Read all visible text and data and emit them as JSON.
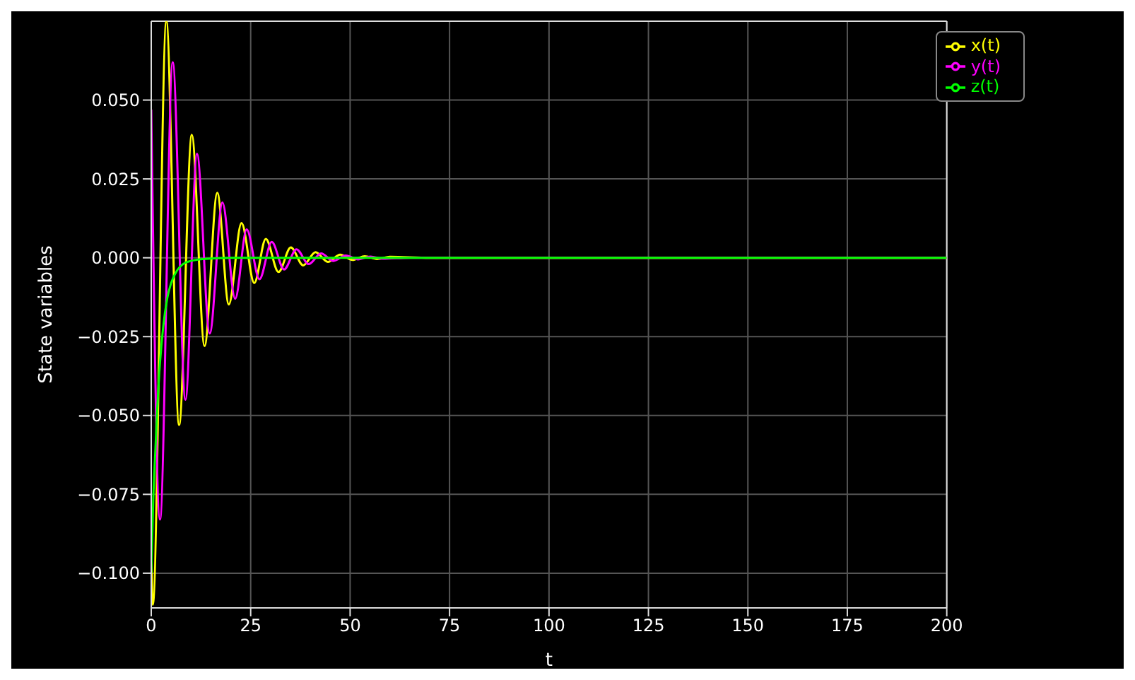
{
  "chart_data": {
    "type": "line",
    "xlabel": "t",
    "ylabel": "State variables",
    "xlim": [
      0,
      200
    ],
    "ylim": [
      -0.111,
      0.075
    ],
    "xticks": [
      0,
      25,
      50,
      75,
      100,
      125,
      150,
      175,
      200
    ],
    "yticks": [
      {
        "value": -0.1,
        "label": "−0.100"
      },
      {
        "value": -0.075,
        "label": "−0.075"
      },
      {
        "value": -0.05,
        "label": "−0.050"
      },
      {
        "value": -0.025,
        "label": "−0.025"
      },
      {
        "value": 0,
        "label": "0.000"
      },
      {
        "value": 0.025,
        "label": "0.025"
      },
      {
        "value": 0.05,
        "label": "0.050"
      }
    ],
    "grid": true,
    "legend": "top right",
    "marker": "none",
    "line_style": "solid",
    "series": [
      {
        "name": "x(t)",
        "color": "#ffff00",
        "x": [
          0,
          0.4,
          3.8,
          7.0,
          10.2,
          13.4,
          16.6,
          19.5,
          22.7,
          25.9,
          28.8,
          32,
          35.1,
          38.2,
          41.3,
          44.4,
          47.5,
          50.6,
          53.7,
          56.8,
          60,
          70,
          200
        ],
        "values": [
          -0.09,
          -0.11,
          0.075,
          -0.053,
          0.039,
          -0.028,
          0.0206,
          -0.0148,
          0.011,
          -0.008,
          0.006,
          -0.0045,
          0.0033,
          -0.0024,
          0.0018,
          -0.0013,
          0.001,
          -0.0007,
          0.0005,
          -0.0004,
          0.0003,
          0,
          0
        ]
      },
      {
        "name": "y(t)",
        "color": "#ff00ff",
        "x": [
          0,
          2.2,
          5.4,
          8.6,
          11.5,
          14.7,
          17.9,
          21.1,
          24,
          27.2,
          30.3,
          33.4,
          36.5,
          39.6,
          42.7,
          45.8,
          48.9,
          52,
          55.1,
          58.2,
          65,
          200
        ],
        "values": [
          0.047,
          -0.083,
          0.062,
          -0.045,
          0.033,
          -0.024,
          0.0175,
          -0.013,
          0.009,
          -0.0068,
          0.005,
          -0.0037,
          0.0027,
          -0.002,
          0.0014,
          -0.001,
          0.0007,
          -0.0005,
          0.0004,
          -0.0003,
          0,
          0
        ]
      },
      {
        "name": "z(t)",
        "color": "#00ff00",
        "x": [
          0,
          0.5,
          1,
          1.5,
          2,
          3,
          4,
          5,
          6.5,
          8,
          10,
          13,
          20,
          200
        ],
        "values": [
          -0.1,
          -0.077,
          -0.062,
          -0.048,
          -0.037,
          -0.022,
          -0.013,
          -0.008,
          -0.004,
          -0.002,
          -0.001,
          -0.0004,
          0,
          0
        ]
      }
    ]
  }
}
